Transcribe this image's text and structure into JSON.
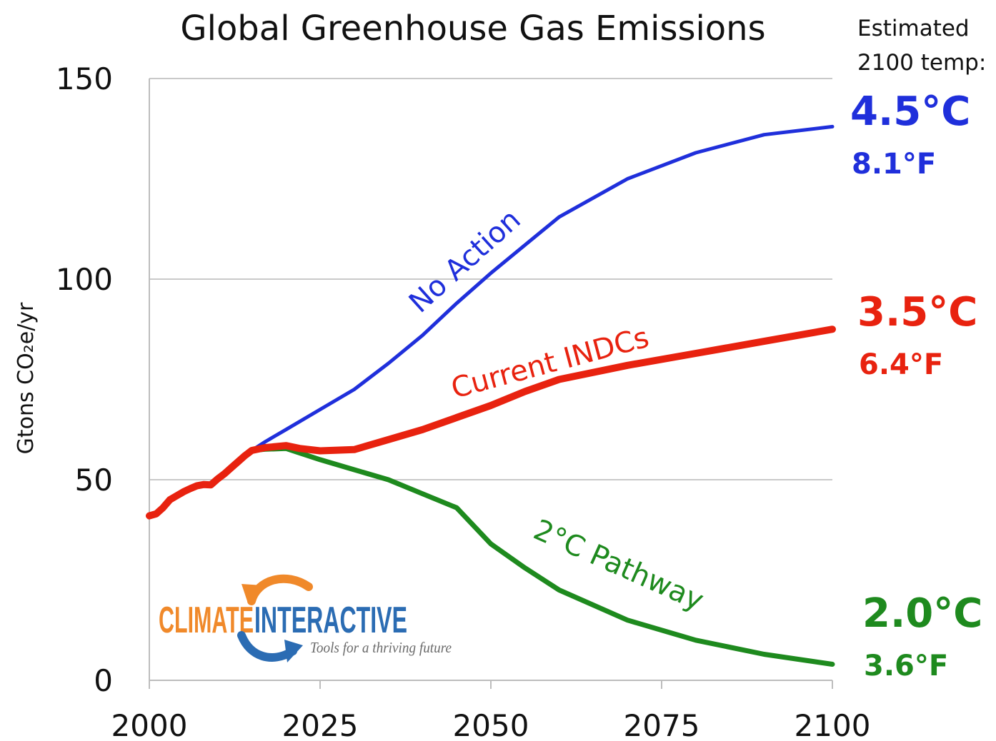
{
  "chart_data": {
    "type": "line",
    "title": "Global Greenhouse Gas Emissions",
    "ylabel": "Gtons CO₂e/yr",
    "xlabel": "",
    "xlim": [
      2000,
      2100
    ],
    "ylim": [
      0,
      150
    ],
    "x_ticks": [
      "2000",
      "2025",
      "2050",
      "2075",
      "2100"
    ],
    "y_ticks": [
      "0",
      "50",
      "100",
      "150"
    ],
    "grid": "horizontal",
    "estimated_header": [
      "Estimated",
      "2100 temp:"
    ],
    "series": [
      {
        "name": "No Action",
        "color": "#1f2fdb",
        "temp_c": "4.5°C",
        "temp_f": "8.1°F",
        "points": [
          [
            2000,
            41
          ],
          [
            2001,
            41.5
          ],
          [
            2002,
            43
          ],
          [
            2003,
            45
          ],
          [
            2004,
            46
          ],
          [
            2005,
            47
          ],
          [
            2006,
            47.8
          ],
          [
            2007,
            48.5
          ],
          [
            2008,
            48.8
          ],
          [
            2009,
            48.7
          ],
          [
            2010,
            50.2
          ],
          [
            2011,
            51.5
          ],
          [
            2012,
            53
          ],
          [
            2013,
            54.5
          ],
          [
            2014,
            56
          ],
          [
            2015,
            57.3
          ],
          [
            2017,
            59.5
          ],
          [
            2020,
            62.5
          ],
          [
            2025,
            67.5
          ],
          [
            2030,
            72.5
          ],
          [
            2035,
            79
          ],
          [
            2040,
            86
          ],
          [
            2045,
            94
          ],
          [
            2050,
            101.5
          ],
          [
            2055,
            108.5
          ],
          [
            2060,
            115.5
          ],
          [
            2070,
            125
          ],
          [
            2080,
            131.5
          ],
          [
            2090,
            136
          ],
          [
            2100,
            138
          ]
        ]
      },
      {
        "name": "Current INDCs",
        "color": "#e8220f",
        "temp_c": "3.5°C",
        "temp_f": "6.4°F",
        "points": [
          [
            2000,
            41
          ],
          [
            2001,
            41.5
          ],
          [
            2002,
            43
          ],
          [
            2003,
            45
          ],
          [
            2004,
            46
          ],
          [
            2005,
            47
          ],
          [
            2006,
            47.8
          ],
          [
            2007,
            48.5
          ],
          [
            2008,
            48.8
          ],
          [
            2009,
            48.7
          ],
          [
            2010,
            50.2
          ],
          [
            2011,
            51.5
          ],
          [
            2012,
            53
          ],
          [
            2013,
            54.5
          ],
          [
            2014,
            56
          ],
          [
            2015,
            57.3
          ],
          [
            2017,
            58
          ],
          [
            2020,
            58.5
          ],
          [
            2022,
            57.8
          ],
          [
            2025,
            57.2
          ],
          [
            2030,
            57.5
          ],
          [
            2035,
            60
          ],
          [
            2040,
            62.5
          ],
          [
            2045,
            65.5
          ],
          [
            2050,
            68.5
          ],
          [
            2055,
            72
          ],
          [
            2060,
            75
          ],
          [
            2070,
            78.5
          ],
          [
            2080,
            81.5
          ],
          [
            2090,
            84.5
          ],
          [
            2100,
            87.5
          ]
        ]
      },
      {
        "name": "2°C Pathway",
        "color": "#1e8a1e",
        "temp_c": "2.0°C",
        "temp_f": "3.6°F",
        "points": [
          [
            2000,
            41
          ],
          [
            2001,
            41.5
          ],
          [
            2002,
            43
          ],
          [
            2003,
            45
          ],
          [
            2004,
            46
          ],
          [
            2005,
            47
          ],
          [
            2006,
            47.8
          ],
          [
            2007,
            48.5
          ],
          [
            2008,
            48.8
          ],
          [
            2009,
            48.7
          ],
          [
            2010,
            50.2
          ],
          [
            2011,
            51.5
          ],
          [
            2012,
            53
          ],
          [
            2013,
            54.5
          ],
          [
            2014,
            56
          ],
          [
            2015,
            57.3
          ],
          [
            2017,
            57.6
          ],
          [
            2020,
            57.8
          ],
          [
            2025,
            55
          ],
          [
            2030,
            52.5
          ],
          [
            2035,
            50
          ],
          [
            2040,
            46.5
          ],
          [
            2045,
            43
          ],
          [
            2050,
            34
          ],
          [
            2055,
            28
          ],
          [
            2060,
            22.5
          ],
          [
            2070,
            15
          ],
          [
            2080,
            10
          ],
          [
            2090,
            6.5
          ],
          [
            2100,
            4
          ]
        ]
      }
    ]
  },
  "logo": {
    "word1": "CLIMATE",
    "word2": "INTERACTIVE",
    "tagline": "Tools for a thriving future",
    "color1": "#f0892a",
    "color2": "#2b6cb3"
  }
}
